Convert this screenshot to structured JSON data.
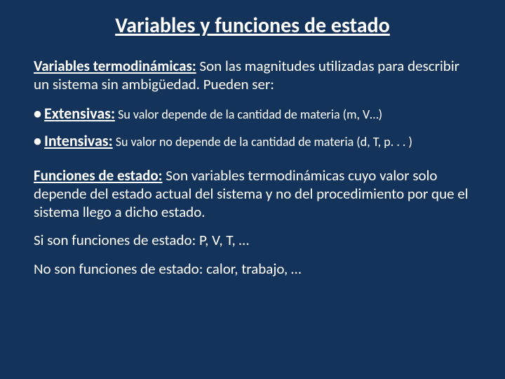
{
  "style": {
    "background_color": "#14335a",
    "text_color": "#ffffff",
    "title_fontsize": 30,
    "body_fontsize": 21,
    "bullet_term_fontsize": 22,
    "bullet_body_fontsize": 18,
    "font_family": "Calibri"
  },
  "title": "Variables y funciones de estado",
  "definition1": {
    "term": "Variables termodinámicas:",
    "body": " Son las magnitudes utilizadas para describir un sistema sin ambigüedad. Pueden ser:"
  },
  "bullets": [
    {
      "term": "Extensivas:",
      "body": " Su valor depende de la cantidad de materia (m, V…)"
    },
    {
      "term": "Intensivas:",
      "body": " Su valor no depende de la cantidad de materia (d, T, p. . . )"
    }
  ],
  "definition2": {
    "term": "Funciones de estado:",
    "body": " Son variables termodinámicas cuyo valor solo depende del estado actual del sistema y no del procedimiento por que el sistema llego a dicho estado."
  },
  "line_yes": "Si son funciones de estado: P, V, T, …",
  "line_no": "No son funciones de estado: calor, trabajo, …"
}
